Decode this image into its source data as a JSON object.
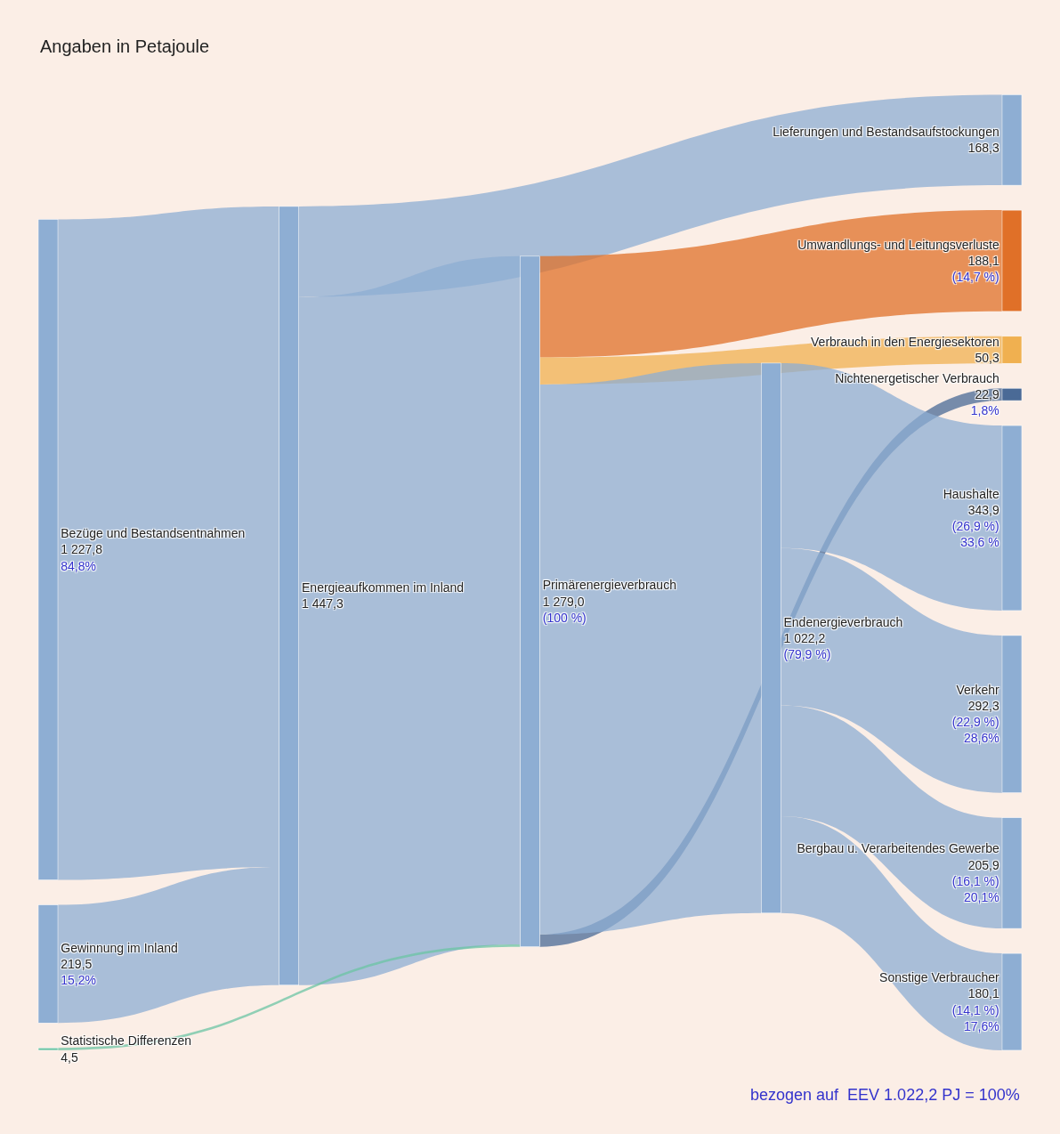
{
  "chart_data": {
    "type": "other",
    "subtitle": "Angaben in Petajoule",
    "categories": [
      "Gewinnung im Inland",
      "Bezüge und Bestandsentnahmen",
      "Energieaufkommen im Inland",
      "Lieferungen und Bestandsaufstockungen",
      "Primärenergieverbrauch",
      "Statistische Differenzen",
      "Nichtenergetischer Verbrauch",
      "Umwandlungs- und Leitungsverluste",
      "Verbrauch in den Energiesektoren",
      "Endenergieverbrauch",
      "Bergbau u. Verarbeitendes Gewerbe",
      "Verkehr",
      "Haushalte",
      "Sonstige Verbraucher"
    ],
    "values": [
      219.5,
      1227.8,
      1447.3,
      168.3,
      1279.0,
      4.5,
      22.9,
      188.1,
      50.3,
      1022.2,
      205.9,
      292.3,
      343.9,
      180.1
    ],
    "value_labels": [
      "219,5",
      "1 227,8",
      "1 447,3",
      "168,3",
      "1 279,0",
      "4,5",
      "22,9",
      "188,1",
      "50,3",
      "1 022,2",
      "205,9",
      "292,3",
      "343,9",
      "180,1"
    ],
    "colors": [
      "#8eaed3",
      "#8eaed3",
      "#8eaed3",
      "#8eaed3",
      "#8eaed3",
      "#6cc4a4",
      "#4a6a96",
      "#e07028",
      "#f0b050",
      "#8eaed3",
      "#8eaed3",
      "#8eaed3",
      "#8eaed3",
      "#8eaed3"
    ],
    "annotations": [
      "15,2%",
      "84,8%",
      "(100 %)",
      "1,8%",
      "(14,7 %)",
      "(79,9 %)",
      "(16,1 %)",
      "(22,9 %)",
      "(26,9 %)",
      "(14,1 %)",
      "20,1%",
      "28,6%",
      "33,6 %",
      "17,6%",
      "bezogen auf  EEV 1.022,2 PJ = 100%"
    ]
  }
}
